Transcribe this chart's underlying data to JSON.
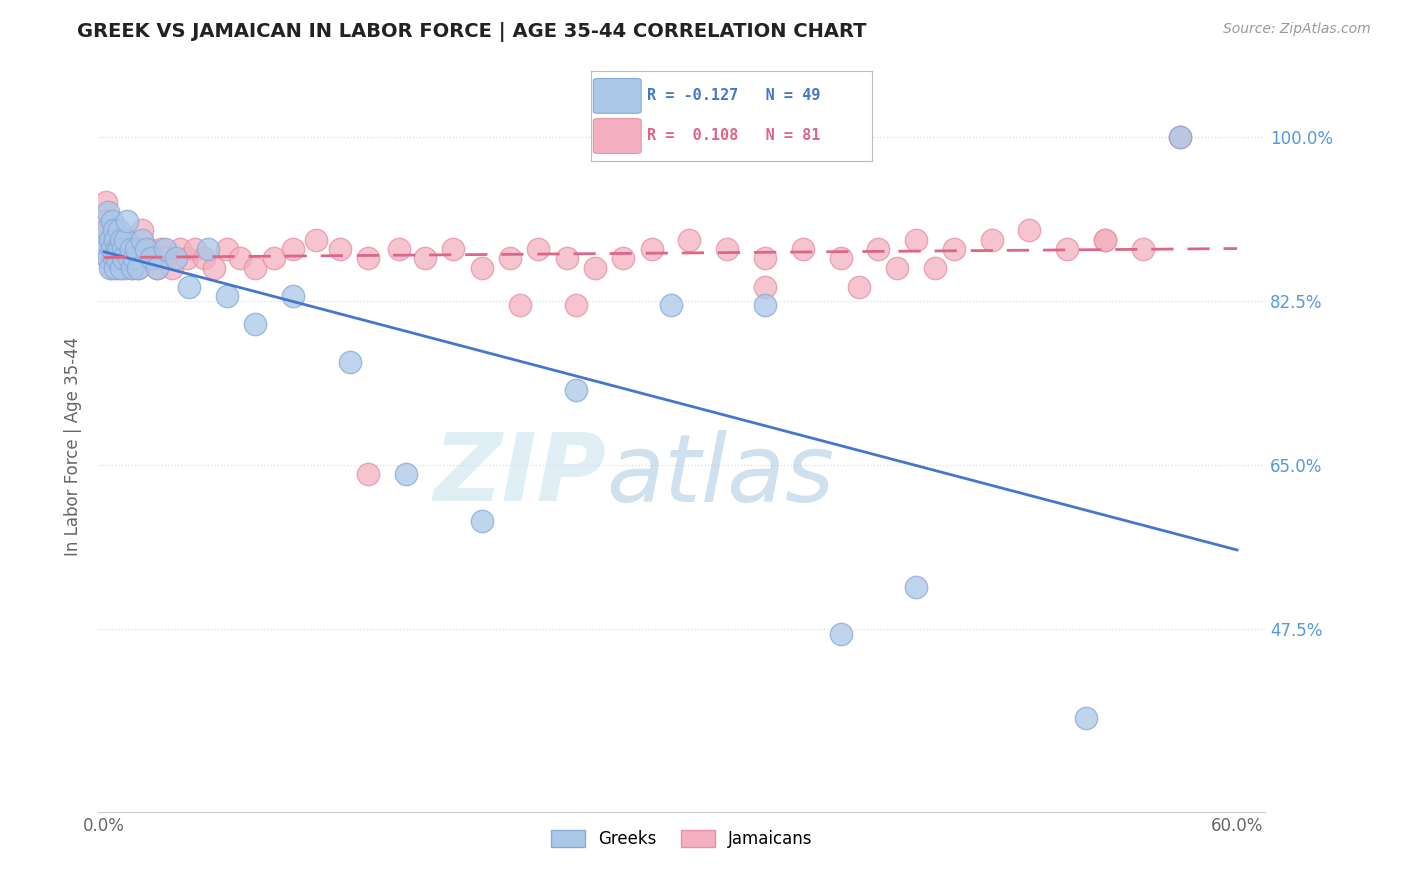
{
  "title": "GREEK VS JAMAICAN IN LABOR FORCE | AGE 35-44 CORRELATION CHART",
  "source_text": "Source: ZipAtlas.com",
  "ylabel": "In Labor Force | Age 35-44",
  "xlim": [
    -0.003,
    0.615
  ],
  "ylim": [
    0.28,
    1.06
  ],
  "ytick_vals": [
    1.0,
    0.825,
    0.65,
    0.475
  ],
  "ytick_labels": [
    "100.0%",
    "82.5%",
    "65.0%",
    "47.5%"
  ],
  "xtick_vals": [
    0.0,
    0.6
  ],
  "xtick_labels": [
    "0.0%",
    "60.0%"
  ],
  "blue_color": "#aac8e8",
  "blue_edge": "#88aad8",
  "pink_color": "#f4b0c0",
  "pink_edge": "#e890a8",
  "blue_line_color": "#4477cc",
  "pink_line_color": "#dd6688",
  "ytick_color": "#5599dd",
  "grid_color": "#dddddd",
  "title_color": "#222222",
  "source_color": "#999999",
  "legend_R_blue": "R = -0.127   N = 49",
  "legend_R_pink": "R =  0.108   N = 81",
  "legend_bottom": [
    "Greeks",
    "Jamaicans"
  ],
  "greek_x": [
    0.001,
    0.001,
    0.002,
    0.002,
    0.003,
    0.003,
    0.004,
    0.004,
    0.005,
    0.005,
    0.006,
    0.006,
    0.007,
    0.007,
    0.008,
    0.008,
    0.009,
    0.009,
    0.01,
    0.01,
    0.011,
    0.012,
    0.013,
    0.014,
    0.015,
    0.016,
    0.017,
    0.018,
    0.02,
    0.022,
    0.025,
    0.028,
    0.032,
    0.038,
    0.045,
    0.055,
    0.065,
    0.08,
    0.1,
    0.13,
    0.16,
    0.2,
    0.25,
    0.3,
    0.35,
    0.39,
    0.43,
    0.52,
    0.57
  ],
  "greek_y": [
    0.9,
    0.88,
    0.92,
    0.87,
    0.89,
    0.86,
    0.91,
    0.88,
    0.87,
    0.9,
    0.86,
    0.89,
    0.88,
    0.87,
    0.9,
    0.88,
    0.86,
    0.89,
    0.88,
    0.87,
    0.89,
    0.91,
    0.87,
    0.88,
    0.86,
    0.87,
    0.88,
    0.86,
    0.89,
    0.88,
    0.87,
    0.86,
    0.88,
    0.87,
    0.84,
    0.88,
    0.83,
    0.8,
    0.83,
    0.76,
    0.64,
    0.59,
    0.73,
    0.82,
    0.82,
    0.47,
    0.52,
    0.38,
    1.0
  ],
  "jamaican_x": [
    0.001,
    0.001,
    0.002,
    0.002,
    0.003,
    0.003,
    0.004,
    0.004,
    0.005,
    0.005,
    0.006,
    0.006,
    0.007,
    0.007,
    0.008,
    0.008,
    0.009,
    0.01,
    0.01,
    0.011,
    0.012,
    0.013,
    0.014,
    0.015,
    0.016,
    0.017,
    0.018,
    0.019,
    0.02,
    0.022,
    0.024,
    0.026,
    0.028,
    0.03,
    0.033,
    0.036,
    0.04,
    0.044,
    0.048,
    0.053,
    0.058,
    0.065,
    0.072,
    0.08,
    0.09,
    0.1,
    0.112,
    0.125,
    0.14,
    0.156,
    0.17,
    0.185,
    0.2,
    0.215,
    0.23,
    0.245,
    0.26,
    0.275,
    0.29,
    0.31,
    0.33,
    0.35,
    0.37,
    0.39,
    0.41,
    0.43,
    0.45,
    0.47,
    0.49,
    0.51,
    0.53,
    0.55,
    0.57,
    0.35,
    0.4,
    0.42,
    0.22,
    0.25,
    0.44,
    0.53,
    0.14
  ],
  "jamaican_y": [
    0.93,
    0.91,
    0.87,
    0.9,
    0.88,
    0.89,
    0.87,
    0.86,
    0.88,
    0.89,
    0.87,
    0.9,
    0.88,
    0.87,
    0.86,
    0.88,
    0.89,
    0.87,
    0.88,
    0.86,
    0.89,
    0.88,
    0.87,
    0.86,
    0.88,
    0.87,
    0.86,
    0.88,
    0.9,
    0.87,
    0.88,
    0.87,
    0.86,
    0.88,
    0.87,
    0.86,
    0.88,
    0.87,
    0.88,
    0.87,
    0.86,
    0.88,
    0.87,
    0.86,
    0.87,
    0.88,
    0.89,
    0.88,
    0.87,
    0.88,
    0.87,
    0.88,
    0.86,
    0.87,
    0.88,
    0.87,
    0.86,
    0.87,
    0.88,
    0.89,
    0.88,
    0.87,
    0.88,
    0.87,
    0.88,
    0.89,
    0.88,
    0.89,
    0.9,
    0.88,
    0.89,
    0.88,
    1.0,
    0.84,
    0.84,
    0.86,
    0.82,
    0.82,
    0.86,
    0.89,
    0.64
  ]
}
